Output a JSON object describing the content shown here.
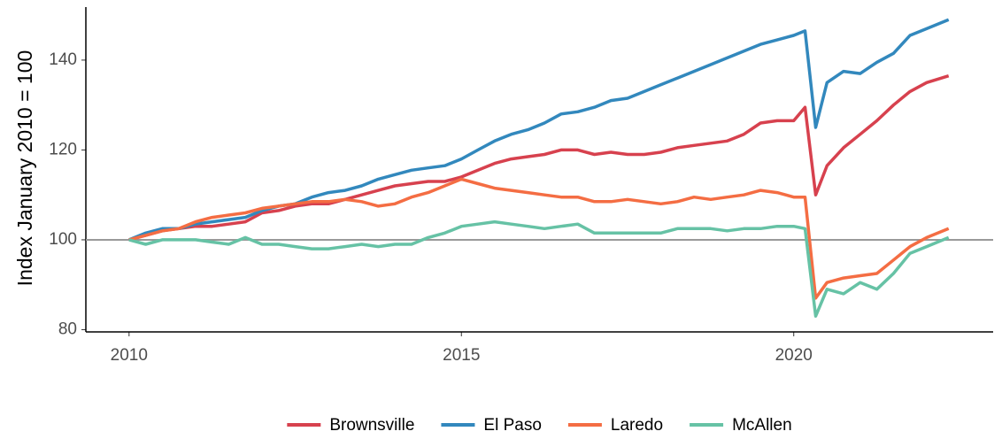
{
  "chart_data": {
    "type": "line",
    "y_label": "Index January 2010 = 100",
    "x": [
      2010,
      2010.25,
      2010.5,
      2010.75,
      2011,
      2011.25,
      2011.5,
      2011.75,
      2012,
      2012.25,
      2012.5,
      2012.75,
      2013,
      2013.25,
      2013.5,
      2013.75,
      2014,
      2014.25,
      2014.5,
      2014.75,
      2015,
      2015.25,
      2015.5,
      2015.75,
      2016,
      2016.25,
      2016.5,
      2016.75,
      2017,
      2017.25,
      2017.5,
      2017.75,
      2018,
      2018.25,
      2018.5,
      2018.75,
      2019,
      2019.25,
      2019.5,
      2019.75,
      2020,
      2020.17,
      2020.33,
      2020.5,
      2020.75,
      2021,
      2021.25,
      2021.5,
      2021.75,
      2022,
      2022.33
    ],
    "series": [
      {
        "name": "Brownsville",
        "color": "#d7414e",
        "values": [
          100,
          101,
          102,
          102.5,
          103,
          103,
          103.5,
          104,
          106,
          106.5,
          107.5,
          108,
          108,
          109,
          110,
          111,
          112,
          112.5,
          113,
          113,
          114,
          115.5,
          117,
          118,
          118.5,
          119,
          120,
          120,
          119,
          119.5,
          119,
          119,
          119.5,
          120.5,
          121,
          121.5,
          122,
          123.5,
          126,
          126.5,
          126.5,
          129.5,
          110,
          116.5,
          120.5,
          123.5,
          126.5,
          130,
          133,
          135,
          136.5
        ]
      },
      {
        "name": "El Paso",
        "color": "#3288bd",
        "values": [
          100,
          101.5,
          102.5,
          102.5,
          103.5,
          104,
          104.5,
          105,
          106.5,
          107.5,
          108,
          109.5,
          110.5,
          111,
          112,
          113.5,
          114.5,
          115.5,
          116,
          116.5,
          118,
          120,
          122,
          123.5,
          124.5,
          126,
          128,
          128.5,
          129.5,
          131,
          131.5,
          133,
          134.5,
          136,
          137.5,
          139,
          140.5,
          142,
          143.5,
          144.5,
          145.5,
          146.5,
          125,
          135,
          137.5,
          137,
          139.5,
          141.5,
          145.5,
          147,
          149
        ]
      },
      {
        "name": "Laredo",
        "color": "#f46d43",
        "values": [
          100,
          101,
          102,
          102.5,
          104,
          105,
          105.5,
          106,
          107,
          107.5,
          108,
          108.5,
          108.5,
          109,
          108.5,
          107.5,
          108,
          109.5,
          110.5,
          112,
          113.5,
          112.5,
          111.5,
          111,
          110.5,
          110,
          109.5,
          109.5,
          108.5,
          108.5,
          109,
          108.5,
          108,
          108.5,
          109.5,
          109,
          109.5,
          110,
          111,
          110.5,
          109.5,
          109.5,
          87,
          90.5,
          91.5,
          92,
          92.5,
          95.5,
          98.5,
          100.5,
          102.5
        ]
      },
      {
        "name": "McAllen",
        "color": "#66c2a5",
        "values": [
          100,
          99,
          100,
          100,
          100,
          99.5,
          99,
          100.5,
          99,
          99,
          98.5,
          98,
          98,
          98.5,
          99,
          98.5,
          99,
          99,
          100.5,
          101.5,
          103,
          103.5,
          104,
          103.5,
          103,
          102.5,
          103,
          103.5,
          101.5,
          101.5,
          101.5,
          101.5,
          101.5,
          102.5,
          102.5,
          102.5,
          102,
          102.5,
          102.5,
          103,
          103,
          102.5,
          83,
          89,
          88,
          90.5,
          89,
          92.5,
          97,
          98.5,
          100.5
        ]
      }
    ],
    "xlim": [
      2009.35,
      2023.0
    ],
    "xticks": [
      2010,
      2015,
      2020
    ],
    "ylim": [
      79.5,
      151.8
    ],
    "yticks": [
      80,
      100,
      120,
      140
    ],
    "reference_line": 100,
    "grid": false,
    "legend": "bottom"
  }
}
